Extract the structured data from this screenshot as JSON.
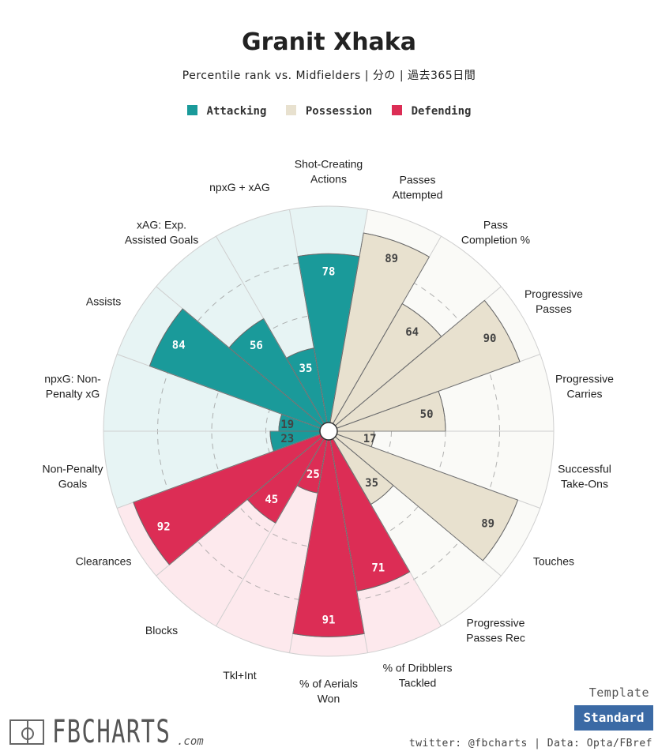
{
  "title": "Granit Xhaka",
  "subtitle": "Percentile rank vs. Midfielders | 分の | 過去365日間",
  "legend": [
    {
      "label": "Attacking",
      "color": "#1a9a9a"
    },
    {
      "label": "Possession",
      "color": "#e8e1cf"
    },
    {
      "label": "Defending",
      "color": "#dc2d55"
    }
  ],
  "colors": {
    "attacking": "#1a9a9a",
    "attacking_bg": "#e7f4f4",
    "possession": "#e8e1cf",
    "possession_bg": "#fafaf7",
    "defending": "#dc2d55",
    "defending_bg": "#fde9ed"
  },
  "chart_data": {
    "type": "polar-bar",
    "title": "Granit Xhaka",
    "subtitle": "Percentile rank vs. Midfielders | 分の | 過去365日間",
    "rlim": [
      0,
      100
    ],
    "start_category": "Shot-Creating Actions",
    "direction": "clockwise",
    "categories": [
      {
        "label": "Shot-Creating Actions",
        "group": "attacking",
        "value": 78
      },
      {
        "label": "Passes Attempted",
        "group": "possession",
        "value": 89
      },
      {
        "label": "Pass Completion %",
        "group": "possession",
        "value": 64
      },
      {
        "label": "Progressive Passes",
        "group": "possession",
        "value": 90
      },
      {
        "label": "Progressive Carries",
        "group": "possession",
        "value": 50
      },
      {
        "label": "Successful Take-Ons",
        "group": "possession",
        "value": 17
      },
      {
        "label": "Touches",
        "group": "possession",
        "value": 89
      },
      {
        "label": "Progressive Passes Rec",
        "group": "possession",
        "value": 35
      },
      {
        "label": "% of Dribblers Tackled",
        "group": "defending",
        "value": 71
      },
      {
        "label": "% of Aerials Won",
        "group": "defending",
        "value": 91
      },
      {
        "label": "Tkl+Int",
        "group": "defending",
        "value": 25
      },
      {
        "label": "Blocks",
        "group": "defending",
        "value": 45
      },
      {
        "label": "Clearances",
        "group": "defending",
        "value": 92
      },
      {
        "label": "Non-Penalty Goals",
        "group": "attacking",
        "value": 23
      },
      {
        "label": "npxG: Non-Penalty xG",
        "group": "attacking",
        "value": 19
      },
      {
        "label": "Assists",
        "group": "attacking",
        "value": 84
      },
      {
        "label": "xAG: Exp. Assisted Goals",
        "group": "attacking",
        "value": 56
      },
      {
        "label": "npxG + xAG",
        "group": "attacking",
        "value": 35
      }
    ],
    "display_labels": [
      [
        "Shot-Creating",
        "Actions"
      ],
      [
        "Passes",
        "Attempted"
      ],
      [
        "Pass",
        "Completion %"
      ],
      [
        "Progressive",
        "Passes"
      ],
      [
        "Progressive",
        "Carries"
      ],
      [
        "Successful",
        "Take-Ons"
      ],
      [
        "Touches"
      ],
      [
        "Progressive",
        "Passes Rec"
      ],
      [
        "% of Dribblers",
        "Tackled"
      ],
      [
        "% of Aerials",
        "Won"
      ],
      [
        "Tkl+Int"
      ],
      [
        "Blocks"
      ],
      [
        "Clearances"
      ],
      [
        "Non-Penalty",
        "Goals"
      ],
      [
        "npxG: Non-",
        "Penalty xG"
      ],
      [
        "Assists"
      ],
      [
        "xAG: Exp.",
        "Assisted Goals"
      ],
      [
        "npxG + xAG"
      ]
    ]
  },
  "footer": {
    "template_label": "Template",
    "template_button": "Standard",
    "credits": "twitter: @fbcharts | Data: Opta/FBref",
    "logo_text": "FBCHARTS",
    "logo_suffix": ".com"
  }
}
